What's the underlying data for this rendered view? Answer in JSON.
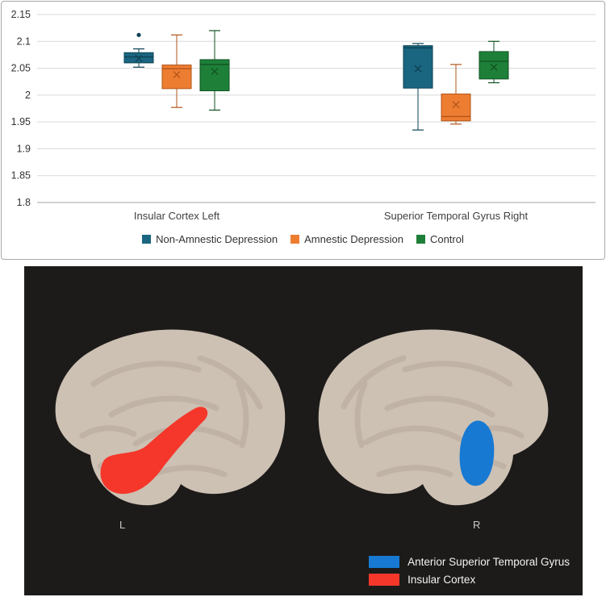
{
  "chart_data": {
    "type": "boxplot",
    "title": "",
    "xlabel": "",
    "ylabel": "",
    "ylim": [
      1.8,
      2.15
    ],
    "yticks": [
      2.15,
      2.1,
      2.05,
      2,
      1.95,
      1.9,
      1.85,
      1.8
    ],
    "grid": true,
    "legend_position": "bottom",
    "categories": [
      "Insular Cortex Left",
      "Superior Temporal Gyrus Right"
    ],
    "series": [
      {
        "name": "Non-Amnestic Depression",
        "color": "#1a6580",
        "dark": "#0e4254",
        "boxes": [
          {
            "min": 2.052,
            "q1": 2.06,
            "median": 2.071,
            "q3": 2.079,
            "max": 2.086,
            "mean": 2.068,
            "outliers": [
              2.112
            ]
          },
          {
            "min": 1.935,
            "q1": 2.013,
            "median": 2.088,
            "q3": 2.092,
            "max": 2.096,
            "mean": 2.049,
            "outliers": []
          }
        ]
      },
      {
        "name": "Amnestic Depression",
        "color": "#ED7D31",
        "dark": "#b25418",
        "boxes": [
          {
            "min": 1.977,
            "q1": 2.012,
            "median": 2.049,
            "q3": 2.056,
            "max": 2.112,
            "mean": 2.038,
            "outliers": []
          },
          {
            "min": 1.946,
            "q1": 1.952,
            "median": 1.96,
            "q3": 2.002,
            "max": 2.057,
            "mean": 1.982,
            "outliers": []
          }
        ]
      },
      {
        "name": "Control",
        "color": "#1e8038",
        "dark": "#115223",
        "boxes": [
          {
            "min": 1.972,
            "q1": 2.008,
            "median": 2.057,
            "q3": 2.066,
            "max": 2.12,
            "mean": 2.044,
            "outliers": []
          },
          {
            "min": 2.023,
            "q1": 2.03,
            "median": 2.063,
            "q3": 2.081,
            "max": 2.1,
            "mean": 2.052,
            "outliers": []
          }
        ]
      }
    ]
  },
  "brain_figure": {
    "left_label": "L",
    "right_label": "R",
    "background": "#1d1b19",
    "brain_color": "#cdc1b4",
    "legend": [
      {
        "label": "Anterior Superior Temporal Gyrus",
        "color": "#1779d2"
      },
      {
        "label": "Insular Cortex",
        "color": "#f5372b"
      }
    ]
  }
}
